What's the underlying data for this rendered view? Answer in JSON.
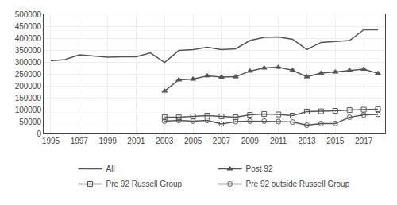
{
  "chart_data": {
    "type": "line",
    "x": [
      1995,
      1996,
      1997,
      1998,
      1999,
      2000,
      2001,
      2002,
      2003,
      2004,
      2005,
      2006,
      2007,
      2008,
      2009,
      2010,
      2011,
      2012,
      2013,
      2014,
      2015,
      2016,
      2017,
      2018
    ],
    "series": [
      {
        "name": "All",
        "color": "#555555",
        "marker": "none",
        "values": [
          305000,
          310000,
          330000,
          325000,
          320000,
          322000,
          322000,
          338000,
          298000,
          348000,
          352000,
          362000,
          352000,
          355000,
          390000,
          403000,
          405000,
          395000,
          352000,
          382000,
          385000,
          390000,
          435000,
          435000
        ]
      },
      {
        "name": "Post 92",
        "color": "#555555",
        "marker": "triangle",
        "values": [
          null,
          null,
          null,
          null,
          null,
          null,
          null,
          null,
          178000,
          225000,
          228000,
          242000,
          237000,
          238000,
          262000,
          275000,
          278000,
          265000,
          238000,
          253000,
          258000,
          265000,
          270000,
          252000
        ]
      },
      {
        "name": "Pre 92 Russell Group",
        "color": "#555555",
        "marker": "square-open",
        "values": [
          null,
          null,
          null,
          null,
          null,
          null,
          null,
          null,
          68000,
          68000,
          72000,
          75000,
          72000,
          68000,
          78000,
          82000,
          80000,
          75000,
          92000,
          93000,
          95000,
          98000,
          100000,
          102000
        ]
      },
      {
        "name": "Pre 92 outside Russell Group",
        "color": "#555555",
        "marker": "circle-open",
        "values": [
          null,
          null,
          null,
          null,
          null,
          null,
          null,
          null,
          52000,
          55000,
          52000,
          55000,
          40000,
          50000,
          52000,
          52000,
          50000,
          48000,
          35000,
          42000,
          42000,
          68000,
          78000,
          80000
        ]
      }
    ],
    "xlim": [
      1994.5,
      2018.5
    ],
    "xticks": [
      1995,
      1997,
      1999,
      2001,
      2003,
      2005,
      2007,
      2009,
      2011,
      2013,
      2015,
      2017
    ],
    "ylim": [
      0,
      500000
    ],
    "yticks": [
      0,
      50000,
      100000,
      150000,
      200000,
      250000,
      300000,
      350000,
      400000,
      450000,
      500000
    ],
    "grid": true,
    "legend": "bottom"
  }
}
